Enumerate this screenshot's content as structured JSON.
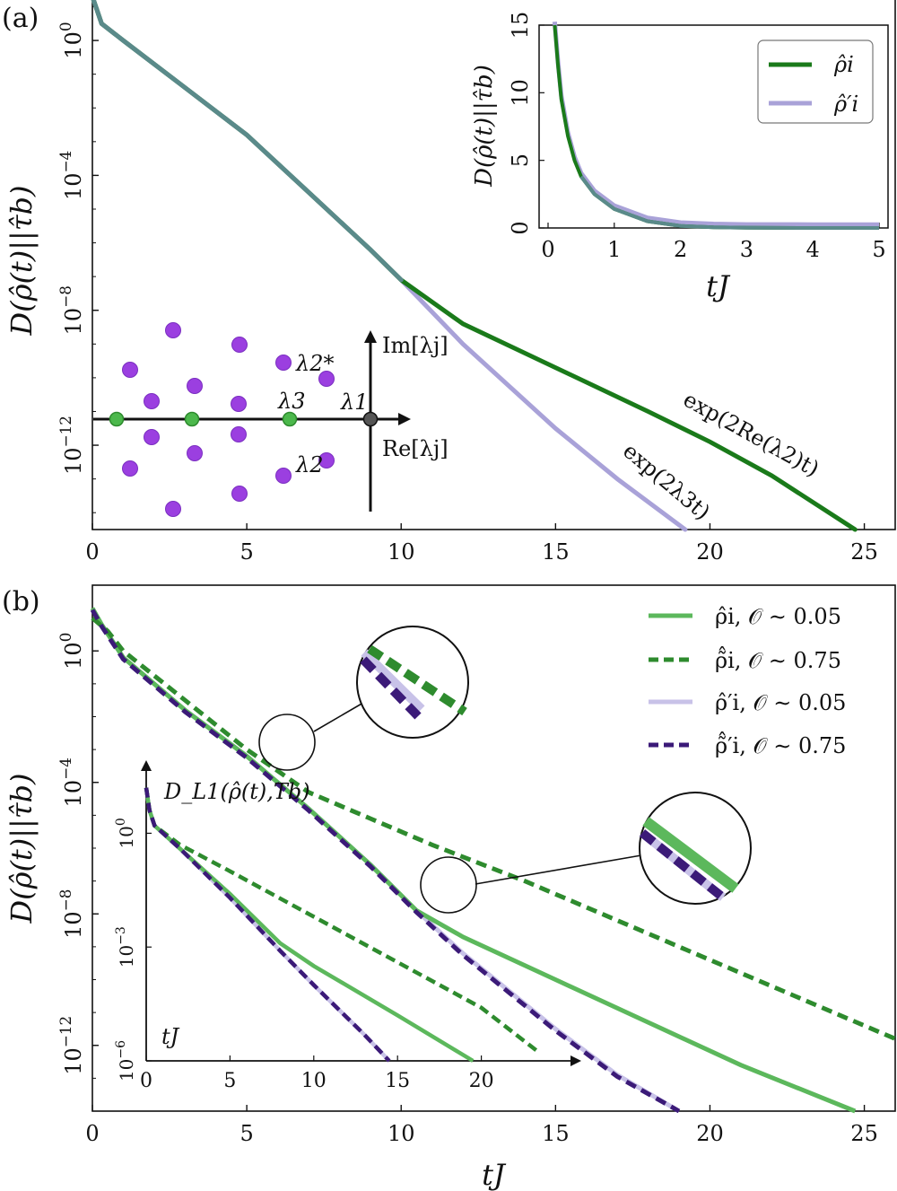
{
  "chart_data": [
    {
      "type": "line",
      "panel_label": "(a)",
      "xlabel": "",
      "ylabel": "D(ρ̂(t)||τ̂b)",
      "xlim": [
        0,
        26
      ],
      "ylim_log10": [
        -14.5,
        1.2
      ],
      "y_scale": "log",
      "x_ticks": [
        "0",
        "5",
        "10",
        "15",
        "20",
        "25"
      ],
      "y_ticks": [
        {
          "exp": 0,
          "label": "10⁰"
        },
        {
          "exp": -4,
          "label": "10⁻⁴"
        },
        {
          "exp": -8,
          "label": "10⁻⁸"
        },
        {
          "exp": -12,
          "label": "10⁻¹²"
        }
      ],
      "series": [
        {
          "name": "ρ̂i",
          "color": "#1a7a1a",
          "x": [
            0,
            0.3,
            1,
            3,
            5,
            7,
            9,
            10,
            12,
            15,
            18,
            20,
            22,
            24.7
          ],
          "y_log10": [
            1.3,
            0.5,
            0.0,
            -1.4,
            -2.8,
            -4.5,
            -6.2,
            -7.1,
            -8.4,
            -9.7,
            -11.0,
            -11.9,
            -12.9,
            -14.5
          ]
        },
        {
          "name": "ρ̂′i",
          "color": "#a9a2d8",
          "x": [
            0,
            0.3,
            1,
            3,
            5,
            7,
            9,
            10,
            12,
            15,
            17,
            19.2
          ],
          "y_log10": [
            1.3,
            0.5,
            0.0,
            -1.4,
            -2.8,
            -4.5,
            -6.2,
            -7.1,
            -9.0,
            -11.5,
            -13.0,
            -14.5
          ]
        }
      ],
      "annotations": [
        "exp(2Re(λ2)t)",
        "exp(2λ3t)"
      ],
      "inset": {
        "type": "line",
        "xlabel": "tJ",
        "ylabel": "D(ρ̂(t)||τ̂b)",
        "xlim": [
          0,
          5
        ],
        "ylim": [
          0,
          15
        ],
        "x_ticks": [
          "0",
          "1",
          "2",
          "3",
          "4",
          "5"
        ],
        "y_ticks": [
          "0",
          "5",
          "10",
          "15"
        ],
        "legend": [
          "ρ̂i",
          "ρ̂′i"
        ],
        "legend_position": "top-right",
        "x": [
          0.1,
          0.15,
          0.2,
          0.3,
          0.4,
          0.5,
          0.7,
          1.0,
          1.5,
          2.0,
          2.5,
          3.0,
          4.0,
          5.0
        ],
        "y": [
          15,
          12,
          9.5,
          6.8,
          5.0,
          3.8,
          2.5,
          1.4,
          0.5,
          0.15,
          0.05,
          0.01,
          0.0,
          0.0
        ]
      },
      "spectrum_inset": {
        "axis_labels": [
          "Im[λj]",
          "Re[λj]"
        ],
        "eigen_labels": [
          "λ1",
          "λ2",
          "λ2*",
          "λ3"
        ]
      }
    },
    {
      "type": "line",
      "panel_label": "(b)",
      "xlabel": "tJ",
      "ylabel": "D(ρ̂(t)||τ̂b)",
      "xlim": [
        0,
        26
      ],
      "ylim_log10": [
        -14,
        2
      ],
      "y_scale": "log",
      "x_ticks": [
        "0",
        "5",
        "10",
        "15",
        "20",
        "25"
      ],
      "y_ticks": [
        {
          "exp": 0,
          "label": "10⁰"
        },
        {
          "exp": -4,
          "label": "10⁻⁴"
        },
        {
          "exp": -8,
          "label": "10⁻⁸"
        },
        {
          "exp": -12,
          "label": "10⁻¹²"
        }
      ],
      "legend_position": "top-right",
      "series": [
        {
          "name": "ρ̂i, 𝒪 ∼ 0.05",
          "color": "#5cb85c",
          "style": "solid",
          "x": [
            0,
            0.3,
            1,
            3,
            5,
            7,
            9,
            10.5,
            12,
            15,
            18,
            21,
            24.7
          ],
          "y_log10": [
            1.3,
            0.8,
            -0.2,
            -1.8,
            -3.2,
            -4.8,
            -6.5,
            -7.9,
            -8.7,
            -10.0,
            -11.3,
            -12.6,
            -14.0
          ]
        },
        {
          "name": "ρ̃̂i, 𝒪 ∼ 0.75",
          "color": "#2e8b2e",
          "style": "dashed",
          "x": [
            0,
            0.5,
            1,
            3,
            5,
            7,
            9,
            11,
            14,
            18,
            22,
            26
          ],
          "y_log10": [
            1.0,
            0.6,
            0.0,
            -1.5,
            -3.0,
            -4.3,
            -5.1,
            -5.9,
            -7.0,
            -8.6,
            -10.2,
            -11.8
          ]
        },
        {
          "name": "ρ̂′i, 𝒪 ∼ 0.05",
          "color": "#c8c2e8",
          "style": "solid",
          "x": [
            0,
            0.3,
            1,
            3,
            5,
            7,
            9,
            10.5,
            12,
            15,
            17,
            19
          ],
          "y_log10": [
            1.3,
            0.8,
            -0.2,
            -1.8,
            -3.2,
            -4.8,
            -6.5,
            -7.9,
            -9.2,
            -11.5,
            -12.9,
            -14.0
          ]
        },
        {
          "name": "ρ̃̂′i, 𝒪 ∼ 0.75",
          "color": "#3b1a78",
          "style": "dashed",
          "x": [
            0,
            0.3,
            1,
            3,
            5,
            7,
            9,
            10.5,
            12,
            15,
            17,
            19
          ],
          "y_log10": [
            1.25,
            0.75,
            -0.25,
            -1.85,
            -3.25,
            -4.85,
            -6.55,
            -7.95,
            -9.25,
            -11.55,
            -12.95,
            -14.0
          ]
        }
      ],
      "inset": {
        "type": "line",
        "ylabel": "D_L1(ρ̂(t),Tb)",
        "xlabel": "tJ",
        "y_scale": "log",
        "xlim": [
          0,
          25
        ],
        "ylim_log10": [
          -6,
          1.5
        ],
        "x_ticks": [
          "0",
          "5",
          "10",
          "15",
          "20"
        ],
        "y_ticks": [
          {
            "exp": 0,
            "label": "10⁰"
          },
          {
            "exp": -3,
            "label": "10⁻³"
          },
          {
            "exp": -6,
            "label": "10⁻⁶"
          }
        ],
        "series": [
          {
            "name": "ρ̂i, 𝒪 ∼ 0.05",
            "x": [
              0,
              0.2,
              0.5,
              2,
              5,
              8,
              10,
              15,
              19.5
            ],
            "y_log10": [
              1.2,
              0.6,
              0.2,
              -0.4,
              -1.6,
              -2.9,
              -3.5,
              -4.8,
              -6.0
            ]
          },
          {
            "name": "ρ̃̂i, 𝒪 ∼ 0.75",
            "x": [
              0,
              0.2,
              0.5,
              2,
              5,
              10,
              15,
              20,
              23.5
            ],
            "y_log10": [
              1.2,
              0.6,
              0.2,
              -0.3,
              -1.0,
              -2.2,
              -3.4,
              -4.6,
              -5.8
            ]
          },
          {
            "name": "ρ̂′i, 𝒪 ∼ 0.05",
            "x": [
              0,
              0.2,
              0.5,
              2,
              5,
              8,
              10,
              13,
              14.5
            ],
            "y_log10": [
              1.2,
              0.6,
              0.2,
              -0.4,
              -1.7,
              -3.1,
              -4.0,
              -5.3,
              -6.0
            ]
          },
          {
            "name": "ρ̃̂′i, 𝒪 ∼ 0.75",
            "x": [
              0,
              0.2,
              0.5,
              2,
              5,
              8,
              10,
              13,
              14.5
            ],
            "y_log10": [
              1.2,
              0.6,
              0.2,
              -0.4,
              -1.7,
              -3.1,
              -4.0,
              -5.3,
              -6.0
            ]
          }
        ]
      }
    }
  ]
}
